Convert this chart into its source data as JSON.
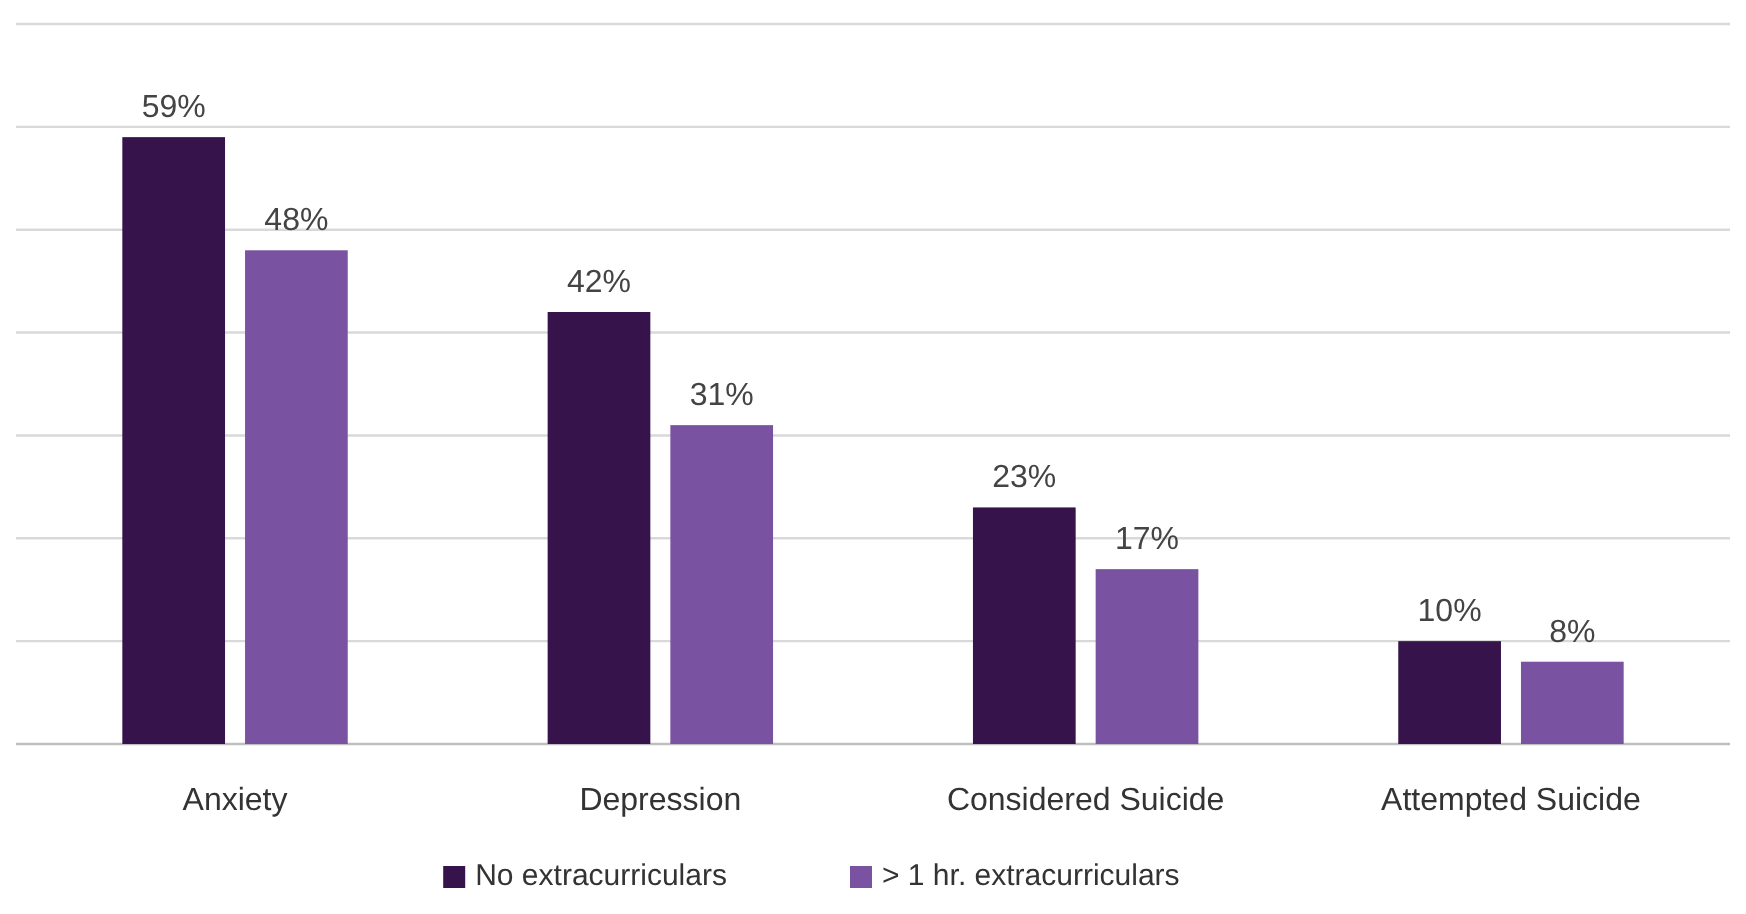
{
  "chart_data": {
    "type": "bar",
    "categories": [
      "Anxiety",
      "Depression",
      "Considered Suicide",
      "Attempted Suicide"
    ],
    "series": [
      {
        "name": "No extracurriculars",
        "color": "#36134b",
        "values": [
          59,
          42,
          23,
          10
        ],
        "value_labels": [
          "59%",
          "42%",
          "23%",
          "10%"
        ]
      },
      {
        "name": "> 1 hr. extracurriculars",
        "color": "#7a52a2",
        "values": [
          48,
          31,
          17,
          8
        ],
        "value_labels": [
          "48%",
          "31%",
          "17%",
          "8%"
        ]
      }
    ],
    "ylim": [
      0,
      70
    ],
    "yticks": [
      {
        "value": 0,
        "label": null
      },
      {
        "value": 10,
        "label": null
      },
      {
        "value": 20,
        "label": null
      },
      {
        "value": 30,
        "label": null
      },
      {
        "value": 40,
        "label": null
      },
      {
        "value": 50,
        "label": null
      },
      {
        "value": 60,
        "label": null
      },
      {
        "value": 70,
        "label": null
      }
    ],
    "grid": "y",
    "tick_labels": "x",
    "legend": "bottom"
  }
}
